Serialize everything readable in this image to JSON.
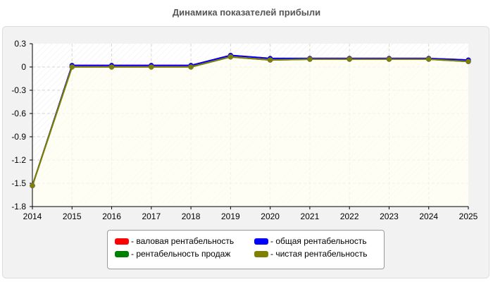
{
  "title": "Динамика показателей прибыли",
  "chart_data": {
    "type": "line",
    "title": "Динамика показателей прибыли",
    "xlabel": "",
    "ylabel": "",
    "x": [
      "2014",
      "2015",
      "2016",
      "2017",
      "2018",
      "2019",
      "2020",
      "2021",
      "2022",
      "2023",
      "2024",
      "2025"
    ],
    "ylim": [
      -1.8,
      0.3
    ],
    "yticks": [
      "0.3",
      "0",
      "-0.3",
      "-0.6",
      "-0.9",
      "-1.2",
      "-1.5",
      "-1.8"
    ],
    "grid": true,
    "legend_position": "bottom",
    "series": [
      {
        "name": "- валовая рентабельность",
        "color": "#ff0000",
        "values": [
          -1.53,
          0.02,
          0.02,
          0.02,
          0.02,
          0.15,
          0.11,
          0.11,
          0.11,
          0.11,
          0.11,
          0.09
        ]
      },
      {
        "name": "- общая рентабельность",
        "color": "#0000ff",
        "values": [
          -1.53,
          0.02,
          0.02,
          0.02,
          0.02,
          0.15,
          0.11,
          0.11,
          0.11,
          0.11,
          0.11,
          0.09
        ]
      },
      {
        "name": "- рентабельность продаж",
        "color": "#008000",
        "values": [
          -1.53,
          0.0,
          0.0,
          0.0,
          0.0,
          0.13,
          0.09,
          0.1,
          0.1,
          0.1,
          0.1,
          0.07
        ]
      },
      {
        "name": "- чистая рентабельность",
        "color": "#808000",
        "values": [
          -1.53,
          0.0,
          0.0,
          0.0,
          0.0,
          0.13,
          0.09,
          0.1,
          0.1,
          0.1,
          0.1,
          0.07
        ]
      }
    ]
  }
}
